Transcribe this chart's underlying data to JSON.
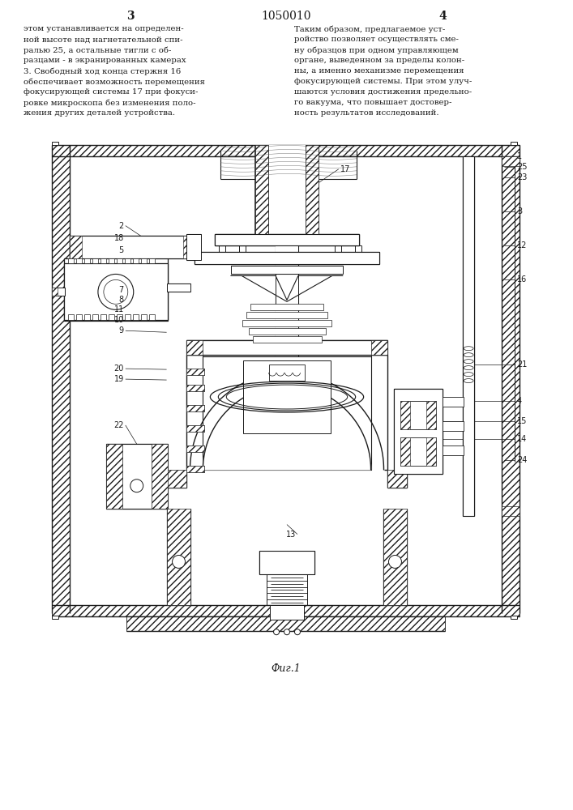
{
  "page_number_left": "3",
  "page_number_center": "1050010",
  "page_number_right": "4",
  "text_left": "этом устанавливается на определен-\nной высоте над нагнетательной спи-\nралью 25, а остальные тигли с об-\nразцами - в экранированных камерах\n3. Свободный ход конца стержня 16\nобеспечивает возможность перемещения\nфокусирующей системы 17 при фокуси-\nровке микроскопа без изменения поло-\nжения других деталей устройства.",
  "text_right": "Таким образом, предлагаемое уст-\nройство позволяет осуществлять сме-\nну образцов при одном управляющем\nоргане, выведенном за пределы колон-\nны, а именно механизме перемещения\nфокусирующей системы. При этом улуч-\nшаются условия достижения предельно-\nго вакуума, что повышает достовер-\nность результатов исследований.",
  "caption": "Фиг.1",
  "bg_color": "#ffffff",
  "line_color": "#1a1a1a",
  "figsize": [
    7.07,
    10.0
  ],
  "dpi": 100
}
